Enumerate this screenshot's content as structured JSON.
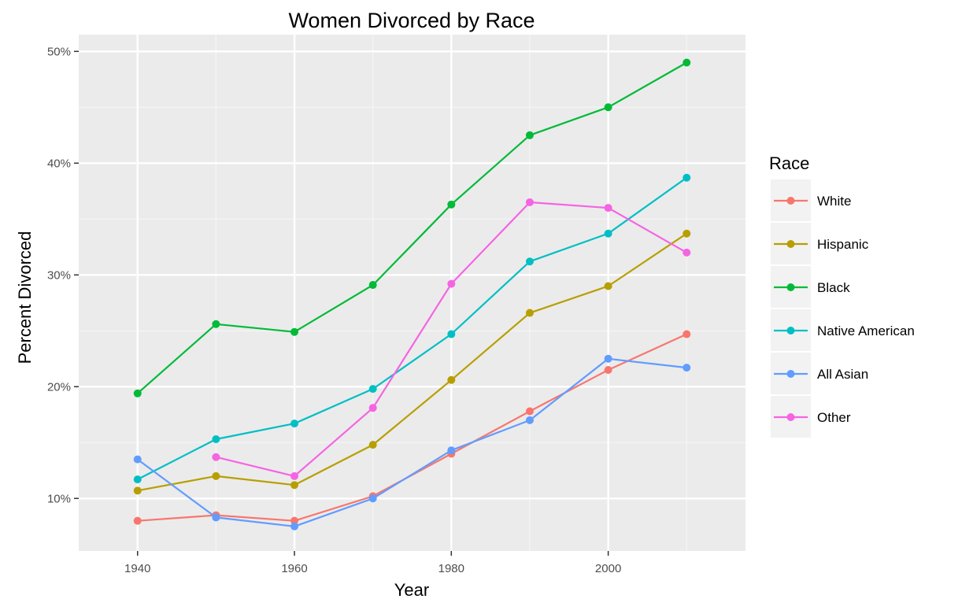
{
  "chart_data": {
    "type": "line",
    "title": "Women Divorced by Race",
    "xlabel": "Year",
    "ylabel": "Percent Divorced",
    "x_ticks": [
      1940,
      1960,
      1980,
      2000
    ],
    "y_ticks": [
      "10%",
      "20%",
      "30%",
      "40%",
      "50%"
    ],
    "xlim": [
      1932.5,
      2017.5
    ],
    "ylim": [
      5.3,
      51.5
    ],
    "grid": true,
    "legend_position": "right",
    "legend_title": "Race",
    "series": [
      {
        "name": "White",
        "color": "#F8766D",
        "x": [
          1940,
          1950,
          1960,
          1970,
          1980,
          1990,
          2000,
          2010
        ],
        "y": [
          8.0,
          8.5,
          8.0,
          10.2,
          14.0,
          17.8,
          21.5,
          24.7
        ]
      },
      {
        "name": "Hispanic",
        "color": "#B79F00",
        "x": [
          1940,
          1950,
          1960,
          1970,
          1980,
          1990,
          2000,
          2010
        ],
        "y": [
          10.7,
          12.0,
          11.2,
          14.8,
          20.6,
          26.6,
          29.0,
          33.7
        ]
      },
      {
        "name": "Black",
        "color": "#00BA38",
        "x": [
          1940,
          1950,
          1960,
          1970,
          1980,
          1990,
          2000,
          2010
        ],
        "y": [
          19.4,
          25.6,
          24.9,
          29.1,
          36.3,
          42.5,
          45.0,
          49.0
        ]
      },
      {
        "name": "Native American",
        "color": "#00BFC4",
        "x": [
          1940,
          1950,
          1960,
          1970,
          1980,
          1990,
          2000,
          2010
        ],
        "y": [
          11.7,
          15.3,
          16.7,
          19.8,
          24.7,
          31.2,
          33.7,
          38.7
        ]
      },
      {
        "name": "All Asian",
        "color": "#619CFF",
        "x": [
          1940,
          1950,
          1960,
          1970,
          1980,
          1990,
          2000,
          2010
        ],
        "y": [
          13.5,
          8.3,
          7.5,
          10.0,
          14.3,
          17.0,
          22.5,
          21.7
        ]
      },
      {
        "name": "Other",
        "color": "#F564E3",
        "x": [
          1950,
          1960,
          1970,
          1980,
          1990,
          2000,
          2010
        ],
        "y": [
          13.7,
          12.0,
          18.1,
          29.2,
          36.5,
          36.0,
          32.0
        ]
      }
    ]
  }
}
